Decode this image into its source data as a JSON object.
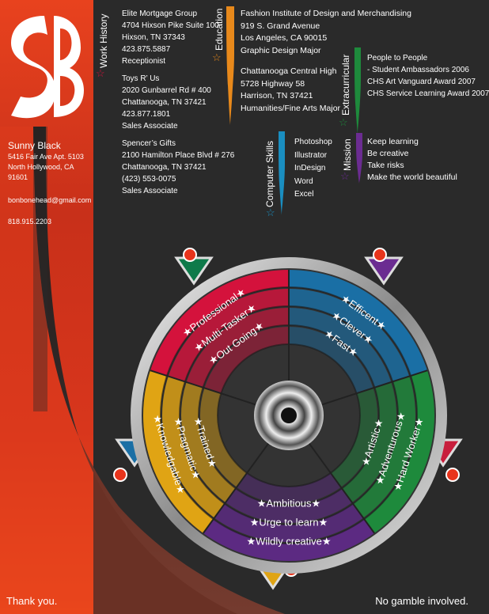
{
  "header": {
    "monogram": "SB",
    "name": "Sunny Black",
    "address1": "5416 Fair Ave Apt. 5103",
    "address2": "North Hollywood, CA 91601",
    "email": "bonbonehead@gmail.com",
    "phone": "818.915.2203"
  },
  "work_history": {
    "heading": "Work History",
    "jobs": [
      {
        "lines": [
          "Elite Mortgage Group",
          "4704 Hixson Pike Suite 100",
          "Hixson, TN 37343",
          "423.875.5887",
          "Receptionist"
        ]
      },
      {
        "lines": [
          "Toys R’ Us",
          "2020 Gunbarrel Rd # 400",
          "Chattanooga, TN 37421",
          "423.877.1801",
          "Sales Associate"
        ]
      },
      {
        "lines": [
          "Spencer’s Gifts",
          "2100 Hamilton Place Blvd # 276",
          "Chattanooga, TN 37421",
          "(423) 553-0075",
          "Sales Associate"
        ]
      }
    ]
  },
  "education": {
    "heading": "Education",
    "schools": [
      {
        "lines": [
          "Fashion Institute of Design and Merchandising",
          "919 S. Grand Avenue",
          "Los Angeles, CA 90015",
          "Graphic Design Major"
        ]
      },
      {
        "lines": [
          "Chattanooga Central High",
          "5728 Highway 58",
          "Harrison, TN 37421",
          "Humanities/Fine Arts Major"
        ]
      }
    ]
  },
  "extracurricular": {
    "heading": "Extracurricular",
    "lines": [
      "People to People",
      "- Student Ambassadors 2006",
      "CHS Art Vanguard Award 2007",
      "CHS Service Learning Award 2007"
    ]
  },
  "computer_skills": {
    "heading": "Computer Skills",
    "items": [
      "Photoshop",
      "Illustrator",
      "InDesign",
      "Word",
      "Excel"
    ]
  },
  "mission": {
    "heading": "Mission",
    "items": [
      "Keep learning",
      "Be creative",
      "Take risks",
      "Make the world beautiful"
    ]
  },
  "wheel": {
    "segments": [
      {
        "color": "#d4123c",
        "words": [
          "Professional",
          "Multi-Tasker",
          "Out Going"
        ]
      },
      {
        "color": "#1a6fa5",
        "words": [
          "Efficent",
          "Clever",
          "Fast"
        ]
      },
      {
        "color": "#1e8a3c",
        "words": [
          "Hard Worker",
          "Adventurous",
          "Artistic"
        ]
      },
      {
        "color": "#5c2a82",
        "words": [
          "Wildly creative",
          "Urge to learn",
          "Ambitious"
        ]
      },
      {
        "color": "#e0a414",
        "words": [
          "Knowledgable",
          "Pragmatic",
          "Trained"
        ]
      }
    ]
  },
  "colors": {
    "red": "#d4123c",
    "orange": "#e8891b",
    "green": "#1e8a3c",
    "blue": "#1a8ec0",
    "purple": "#6b2c91",
    "background": "#2a2a2a"
  },
  "footer": {
    "left": "Thank you.",
    "right": "No gamble involved."
  }
}
